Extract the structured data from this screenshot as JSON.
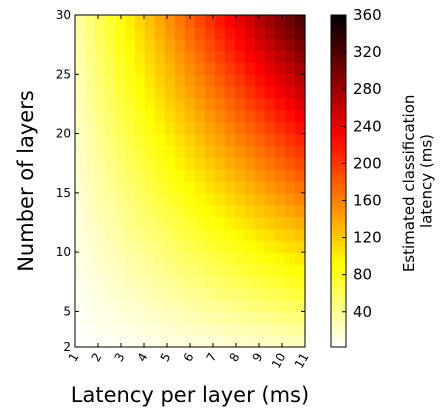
{
  "chart_data": {
    "type": "heatmap",
    "colormap": "hot (reversed: white = low, black = high)",
    "x_label": "Latency per layer (ms)",
    "y_label": "Number of layers",
    "x_ticks": [
      "1",
      "2",
      "3",
      "4",
      "5",
      "6",
      "7",
      "8",
      "9",
      "10",
      "11"
    ],
    "y_ticks": [
      "2",
      "5",
      "10",
      "15",
      "20",
      "25",
      "30"
    ],
    "x_range": [
      1,
      11
    ],
    "y_range": [
      2,
      30
    ],
    "x_cells": 23,
    "y_cells": 28,
    "value_formula": "value = x_latency_per_layer * y_number_of_layers",
    "colorbar": {
      "label_line1": "Estimated classification",
      "label_line2": "latency (ms)",
      "range": [
        2,
        360
      ],
      "ticks": [
        "40",
        "80",
        "120",
        "160",
        "200",
        "240",
        "280",
        "320",
        "360"
      ]
    }
  }
}
